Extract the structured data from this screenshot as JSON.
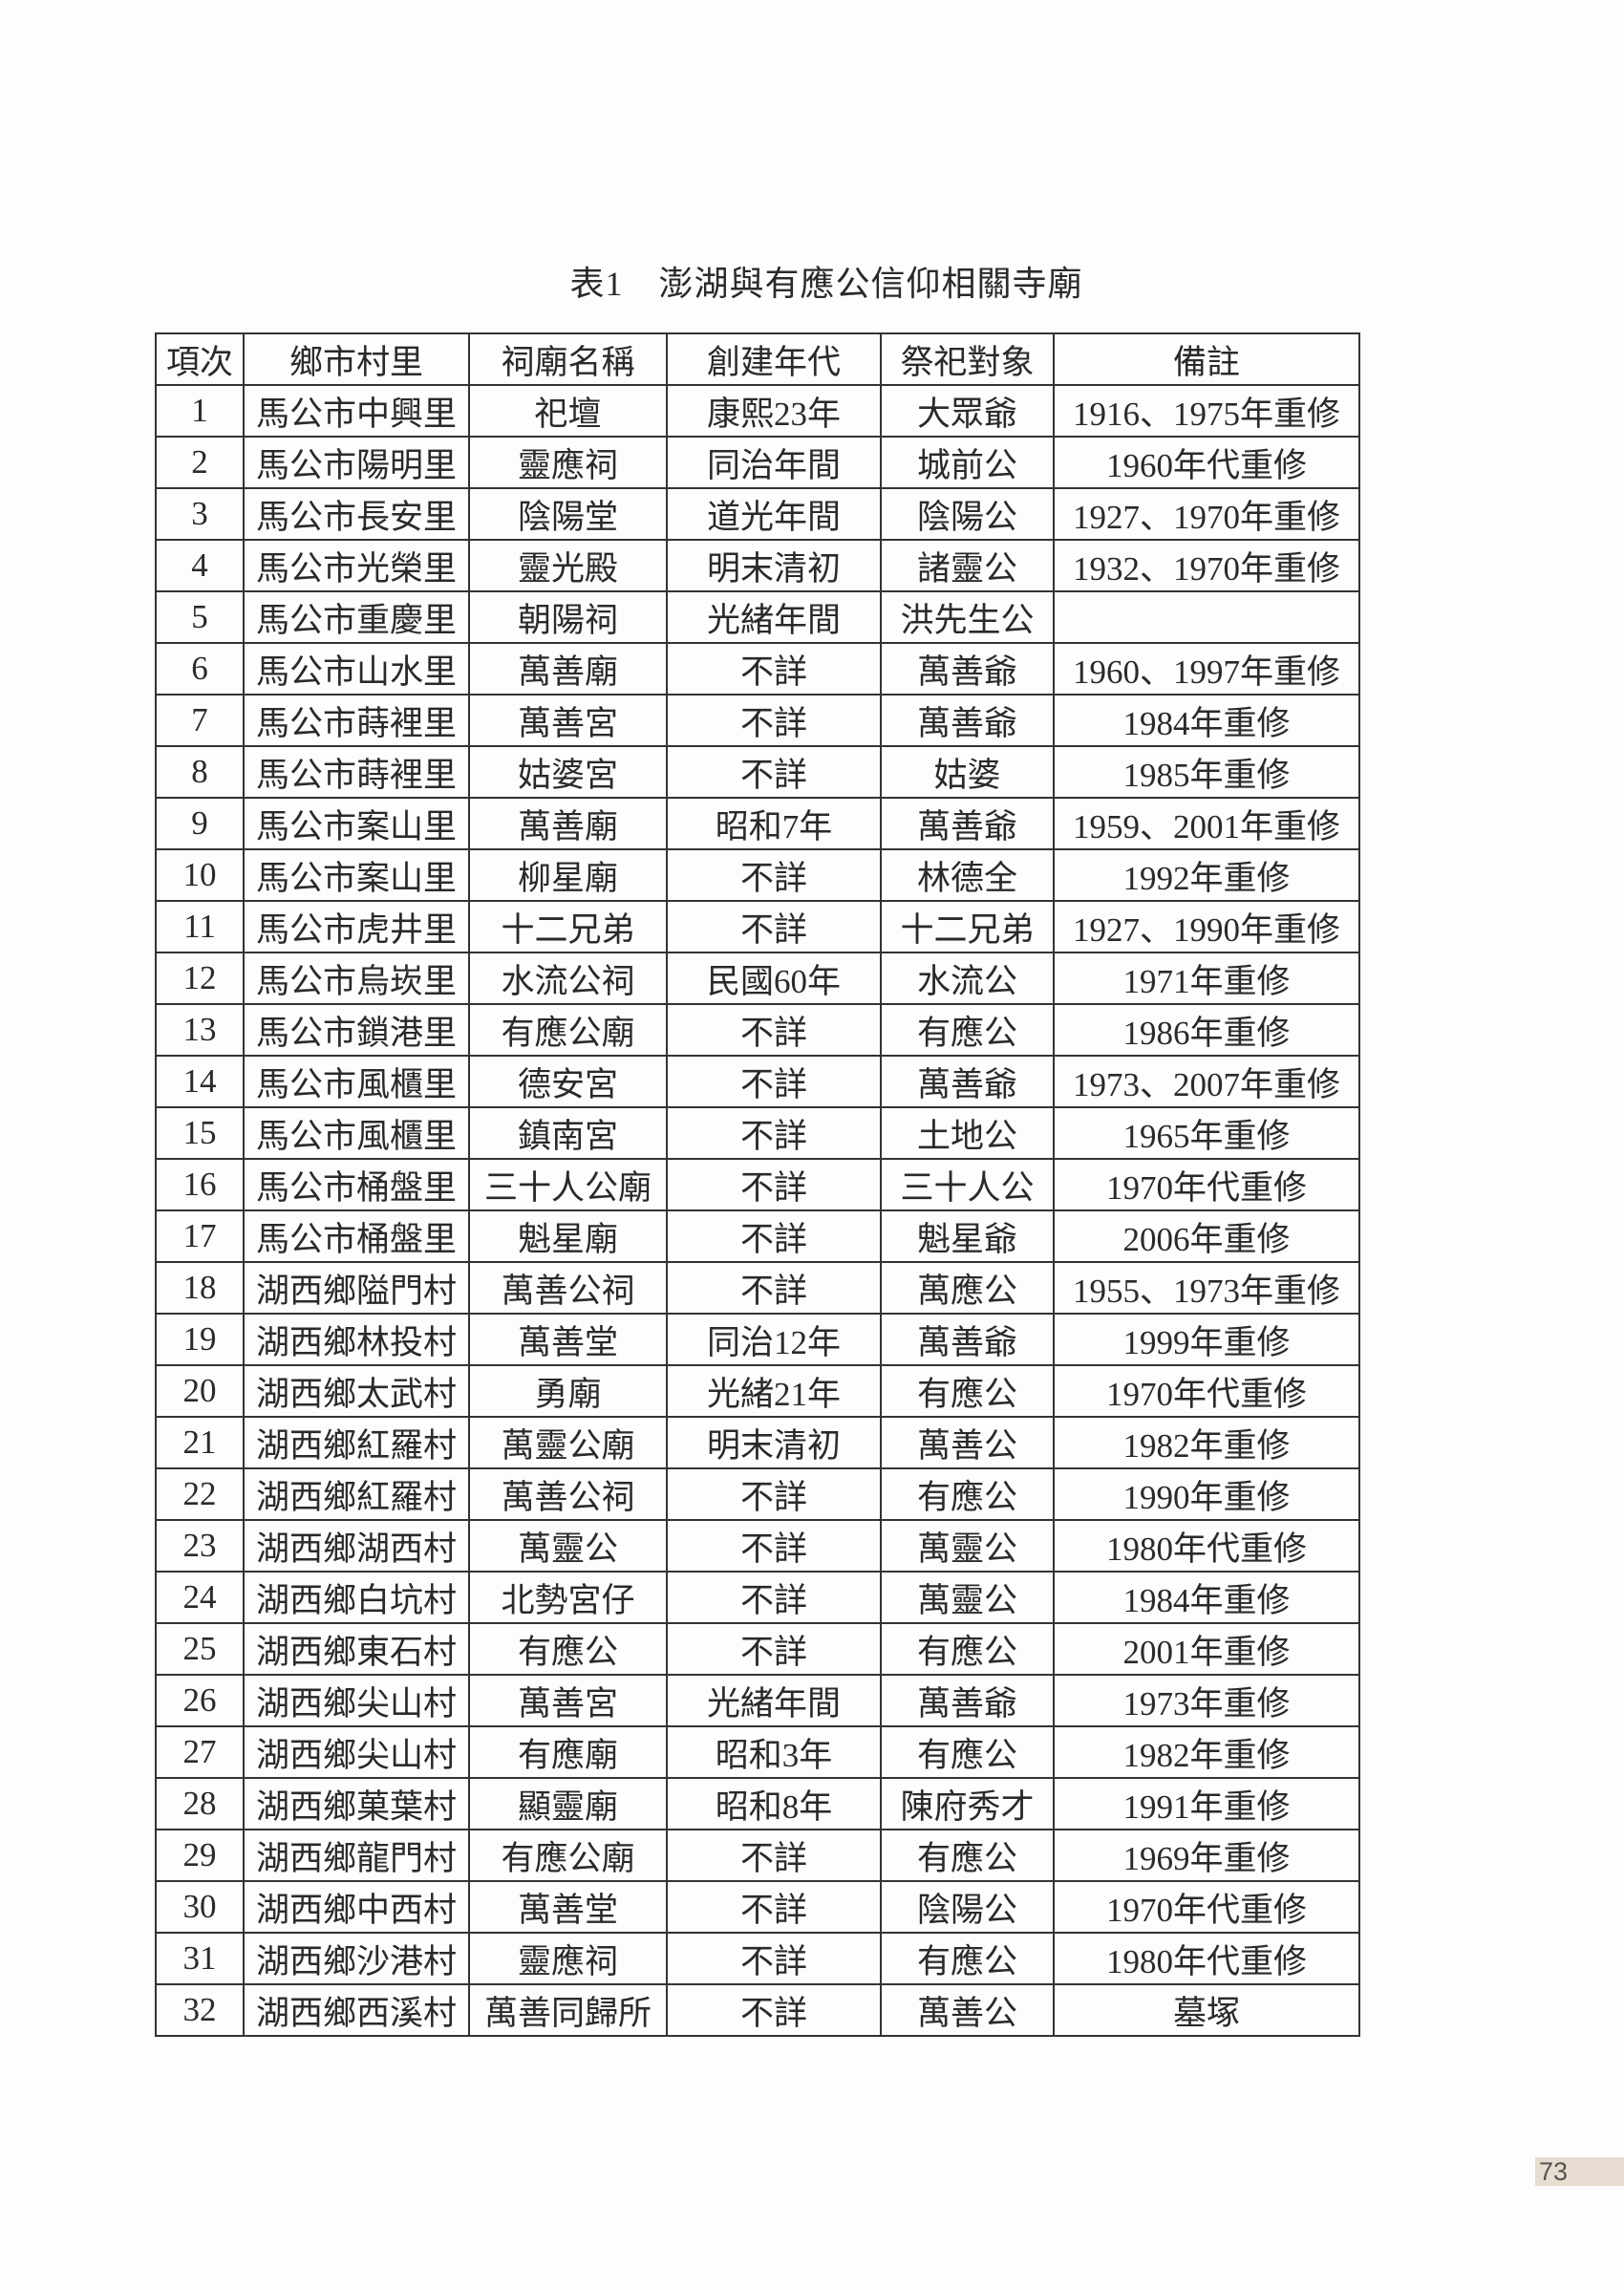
{
  "title": "表1　澎湖與有應公信仰相關寺廟",
  "table": {
    "headers": [
      "項次",
      "鄉市村里",
      "祠廟名稱",
      "創建年代",
      "祭祀對象",
      "備註"
    ],
    "rows": [
      [
        "1",
        "馬公市中興里",
        "祀壇",
        "康熙23年",
        "大眾爺",
        "1916、1975年重修"
      ],
      [
        "2",
        "馬公市陽明里",
        "靈應祠",
        "同治年間",
        "城前公",
        "1960年代重修"
      ],
      [
        "3",
        "馬公市長安里",
        "陰陽堂",
        "道光年間",
        "陰陽公",
        "1927、1970年重修"
      ],
      [
        "4",
        "馬公市光榮里",
        "靈光殿",
        "明末清初",
        "諸靈公",
        "1932、1970年重修"
      ],
      [
        "5",
        "馬公市重慶里",
        "朝陽祠",
        "光緒年間",
        "洪先生公",
        ""
      ],
      [
        "6",
        "馬公市山水里",
        "萬善廟",
        "不詳",
        "萬善爺",
        "1960、1997年重修"
      ],
      [
        "7",
        "馬公市蒔裡里",
        "萬善宮",
        "不詳",
        "萬善爺",
        "1984年重修"
      ],
      [
        "8",
        "馬公市蒔裡里",
        "姑婆宮",
        "不詳",
        "姑婆",
        "1985年重修"
      ],
      [
        "9",
        "馬公市案山里",
        "萬善廟",
        "昭和7年",
        "萬善爺",
        "1959、2001年重修"
      ],
      [
        "10",
        "馬公市案山里",
        "柳星廟",
        "不詳",
        "林德全",
        "1992年重修"
      ],
      [
        "11",
        "馬公市虎井里",
        "十二兄弟",
        "不詳",
        "十二兄弟",
        "1927、1990年重修"
      ],
      [
        "12",
        "馬公市烏崁里",
        "水流公祠",
        "民國60年",
        "水流公",
        "1971年重修"
      ],
      [
        "13",
        "馬公市鎖港里",
        "有應公廟",
        "不詳",
        "有應公",
        "1986年重修"
      ],
      [
        "14",
        "馬公市風櫃里",
        "德安宮",
        "不詳",
        "萬善爺",
        "1973、2007年重修"
      ],
      [
        "15",
        "馬公市風櫃里",
        "鎮南宮",
        "不詳",
        "土地公",
        "1965年重修"
      ],
      [
        "16",
        "馬公市桶盤里",
        "三十人公廟",
        "不詳",
        "三十人公",
        "1970年代重修"
      ],
      [
        "17",
        "馬公市桶盤里",
        "魁星廟",
        "不詳",
        "魁星爺",
        "2006年重修"
      ],
      [
        "18",
        "湖西鄉隘門村",
        "萬善公祠",
        "不詳",
        "萬應公",
        "1955、1973年重修"
      ],
      [
        "19",
        "湖西鄉林投村",
        "萬善堂",
        "同治12年",
        "萬善爺",
        "1999年重修"
      ],
      [
        "20",
        "湖西鄉太武村",
        "勇廟",
        "光緒21年",
        "有應公",
        "1970年代重修"
      ],
      [
        "21",
        "湖西鄉紅羅村",
        "萬靈公廟",
        "明末清初",
        "萬善公",
        "1982年重修"
      ],
      [
        "22",
        "湖西鄉紅羅村",
        "萬善公祠",
        "不詳",
        "有應公",
        "1990年重修"
      ],
      [
        "23",
        "湖西鄉湖西村",
        "萬靈公",
        "不詳",
        "萬靈公",
        "1980年代重修"
      ],
      [
        "24",
        "湖西鄉白坑村",
        "北勢宮仔",
        "不詳",
        "萬靈公",
        "1984年重修"
      ],
      [
        "25",
        "湖西鄉東石村",
        "有應公",
        "不詳",
        "有應公",
        "2001年重修"
      ],
      [
        "26",
        "湖西鄉尖山村",
        "萬善宮",
        "光緒年間",
        "萬善爺",
        "1973年重修"
      ],
      [
        "27",
        "湖西鄉尖山村",
        "有應廟",
        "昭和3年",
        "有應公",
        "1982年重修"
      ],
      [
        "28",
        "湖西鄉菓葉村",
        "顯靈廟",
        "昭和8年",
        "陳府秀才",
        "1991年重修"
      ],
      [
        "29",
        "湖西鄉龍門村",
        "有應公廟",
        "不詳",
        "有應公",
        "1969年重修"
      ],
      [
        "30",
        "湖西鄉中西村",
        "萬善堂",
        "不詳",
        "陰陽公",
        "1970年代重修"
      ],
      [
        "31",
        "湖西鄉沙港村",
        "靈應祠",
        "不詳",
        "有應公",
        "1980年代重修"
      ],
      [
        "32",
        "湖西鄉西溪村",
        "萬善同歸所",
        "不詳",
        "萬善公",
        "墓塚"
      ]
    ]
  },
  "page_number": "73"
}
